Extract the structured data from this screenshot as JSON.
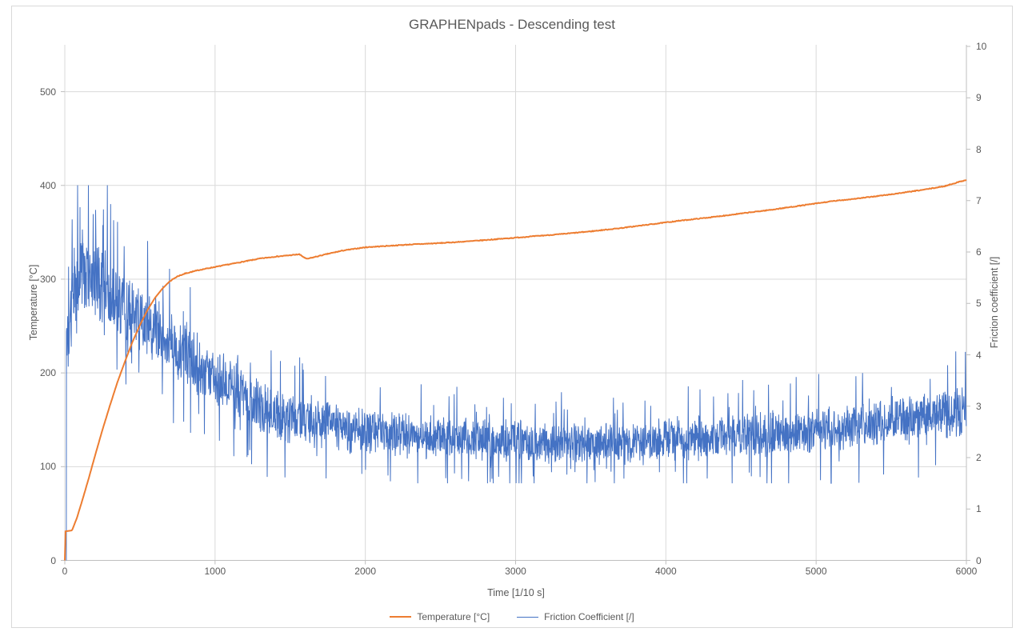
{
  "chart_data": {
    "type": "line",
    "title": "GRAPHENpads - Descending test",
    "grid": true,
    "legend_position": "bottom",
    "x_axis": {
      "label": "Time [1/10 s]",
      "min": 0,
      "max": 6000,
      "ticks": [
        0,
        1000,
        2000,
        3000,
        4000,
        5000,
        6000
      ]
    },
    "y_axis_left": {
      "label": "Temperature [°C]",
      "min": 0,
      "max": 550,
      "ticks": [
        0,
        100,
        200,
        300,
        400,
        500
      ]
    },
    "y_axis_right": {
      "label": "Friction coefficient [/]",
      "min": 0,
      "max": 10,
      "ticks": [
        0,
        1,
        2,
        3,
        4,
        5,
        6,
        7,
        8,
        9,
        10
      ]
    },
    "series": [
      {
        "name": "Temperature [°C]",
        "axis": "left",
        "color": "#ED7D31",
        "stroke_width": 2,
        "keypoints": [
          [
            0,
            0
          ],
          [
            5,
            31
          ],
          [
            48,
            32
          ],
          [
            80,
            45
          ],
          [
            120,
            66
          ],
          [
            160,
            88
          ],
          [
            200,
            111
          ],
          [
            250,
            139
          ],
          [
            300,
            165
          ],
          [
            350,
            190
          ],
          [
            400,
            212
          ],
          [
            450,
            233
          ],
          [
            500,
            251
          ],
          [
            550,
            267
          ],
          [
            600,
            280
          ],
          [
            650,
            290
          ],
          [
            700,
            298
          ],
          [
            750,
            303
          ],
          [
            800,
            306
          ],
          [
            850,
            308
          ],
          [
            900,
            310
          ],
          [
            1000,
            313
          ],
          [
            1100,
            316
          ],
          [
            1200,
            319
          ],
          [
            1300,
            322
          ],
          [
            1400,
            324
          ],
          [
            1500,
            325.5
          ],
          [
            1560,
            326.5
          ],
          [
            1610,
            321.5
          ],
          [
            1660,
            323.5
          ],
          [
            1750,
            327
          ],
          [
            1850,
            330.5
          ],
          [
            2000,
            334
          ],
          [
            2150,
            335.5
          ],
          [
            2300,
            337
          ],
          [
            2500,
            338.5
          ],
          [
            2700,
            340.5
          ],
          [
            2900,
            343
          ],
          [
            3100,
            345.5
          ],
          [
            3300,
            348
          ],
          [
            3500,
            351
          ],
          [
            3700,
            354.5
          ],
          [
            3900,
            358.5
          ],
          [
            4100,
            362.5
          ],
          [
            4300,
            366
          ],
          [
            4500,
            370
          ],
          [
            4700,
            374
          ],
          [
            4900,
            378.5
          ],
          [
            5100,
            383
          ],
          [
            5300,
            386.5
          ],
          [
            5500,
            390.5
          ],
          [
            5700,
            395
          ],
          [
            5850,
            399
          ],
          [
            6000,
            406
          ]
        ],
        "wiggle": 0.8
      },
      {
        "name": "Friction Coefficient [/]",
        "axis": "right",
        "color": "#4472C4",
        "stroke_width": 1,
        "start_point": [
          10,
          0
        ],
        "center_keypoints": [
          [
            12,
            4.3
          ],
          [
            50,
            5.0
          ],
          [
            100,
            5.5
          ],
          [
            180,
            5.55
          ],
          [
            250,
            5.3
          ],
          [
            350,
            5.0
          ],
          [
            450,
            4.75
          ],
          [
            550,
            4.55
          ],
          [
            650,
            4.35
          ],
          [
            750,
            4.1
          ],
          [
            850,
            3.9
          ],
          [
            950,
            3.7
          ],
          [
            1050,
            3.5
          ],
          [
            1150,
            3.3
          ],
          [
            1250,
            3.05
          ],
          [
            1350,
            2.9
          ],
          [
            1450,
            2.82
          ],
          [
            1600,
            2.72
          ],
          [
            1800,
            2.6
          ],
          [
            2000,
            2.5
          ],
          [
            2300,
            2.42
          ],
          [
            2600,
            2.36
          ],
          [
            3000,
            2.3
          ],
          [
            3400,
            2.28
          ],
          [
            3800,
            2.3
          ],
          [
            4200,
            2.38
          ],
          [
            4600,
            2.45
          ],
          [
            5000,
            2.52
          ],
          [
            5400,
            2.68
          ],
          [
            5800,
            2.8
          ],
          [
            6000,
            2.9
          ]
        ],
        "noise_keypoints": [
          [
            12,
            1.0
          ],
          [
            150,
            1.05
          ],
          [
            350,
            0.85
          ],
          [
            600,
            0.75
          ],
          [
            900,
            0.65
          ],
          [
            1300,
            0.6
          ],
          [
            1800,
            0.52
          ],
          [
            2500,
            0.47
          ],
          [
            3500,
            0.45
          ],
          [
            4500,
            0.5
          ],
          [
            5500,
            0.52
          ],
          [
            6000,
            0.58
          ]
        ],
        "spike_rate": 0.05,
        "seed": 42,
        "step": 2,
        "peak_value": 7.3
      }
    ]
  },
  "legend": {
    "temperature": "Temperature [°C]",
    "friction": "Friction Coefficient [/]"
  },
  "colors": {
    "temperature": "#ED7D31",
    "friction": "#4472C4",
    "gridline": "#d9d9d9",
    "axis_line": "#bfbfbf",
    "text": "#595959"
  }
}
